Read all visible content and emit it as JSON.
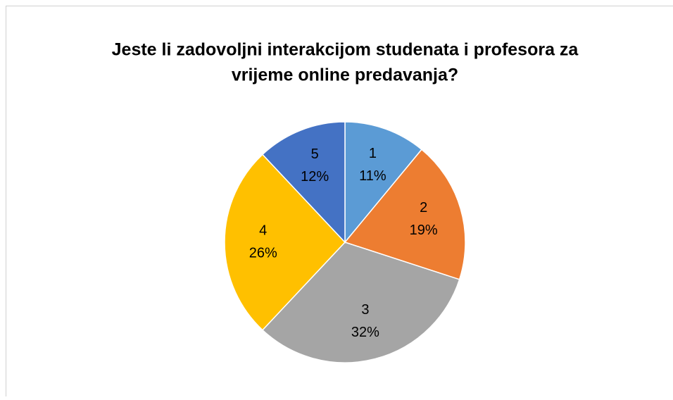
{
  "chart_data": {
    "type": "pie",
    "title": [
      "Jeste li zadovoljni interakcijom studenata i profesora za",
      "vrijeme online predavanja?"
    ],
    "categories": [
      "1",
      "2",
      "3",
      "4",
      "5"
    ],
    "values": [
      11,
      19,
      32,
      26,
      12
    ],
    "value_labels": [
      "11%",
      "19%",
      "32%",
      "26%",
      "12%"
    ],
    "colors": [
      "#5b9bd5",
      "#ed7d31",
      "#a5a5a5",
      "#ffc000",
      "#4472c4"
    ]
  }
}
